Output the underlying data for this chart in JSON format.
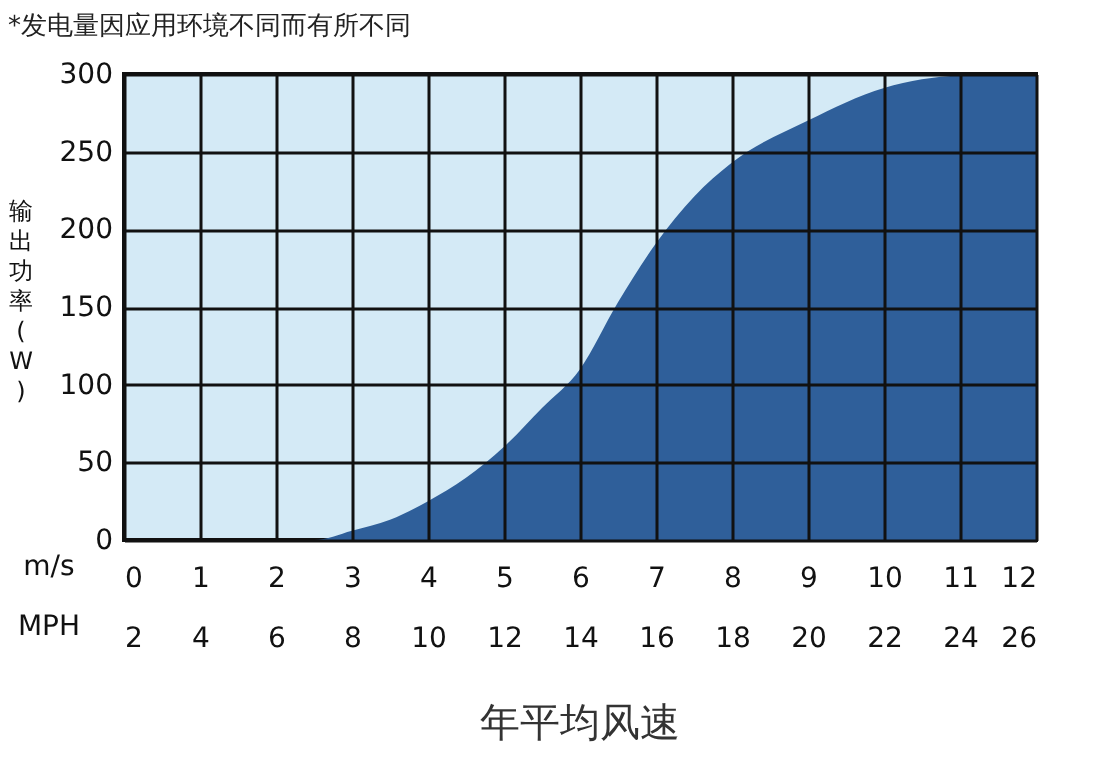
{
  "chart_data": {
    "type": "area",
    "title": "*发电量因应用环境不同而有所不同",
    "xlabel": "m/s",
    "x2label": "MPH",
    "ylabel": "输出功率(W)",
    "annotations": [
      "年平均风速"
    ],
    "x": [
      0,
      2.5,
      3,
      3.5,
      4,
      4.5,
      5,
      5.5,
      6,
      6.5,
      7,
      7.5,
      8,
      9,
      10,
      11,
      12
    ],
    "series": [
      {
        "color": "#2f5f9a",
        "values": [
          0,
          0,
          6,
          13,
          25,
          40,
          60,
          85,
          110,
          153,
          191,
          221,
          243,
          270,
          291,
          299,
          300
        ]
      }
    ],
    "xlim": [
      0,
      12
    ],
    "xticks": [
      0,
      1,
      2,
      3,
      4,
      5,
      6,
      7,
      8,
      9,
      10,
      11,
      12
    ],
    "x2lim": [
      2,
      26
    ],
    "x2ticks": [
      2,
      4,
      6,
      8,
      10,
      12,
      14,
      16,
      18,
      20,
      22,
      24,
      26
    ],
    "ylim": [
      0,
      300
    ],
    "yticks": [
      0,
      50,
      100,
      150,
      200,
      250,
      300
    ],
    "grid": true
  }
}
